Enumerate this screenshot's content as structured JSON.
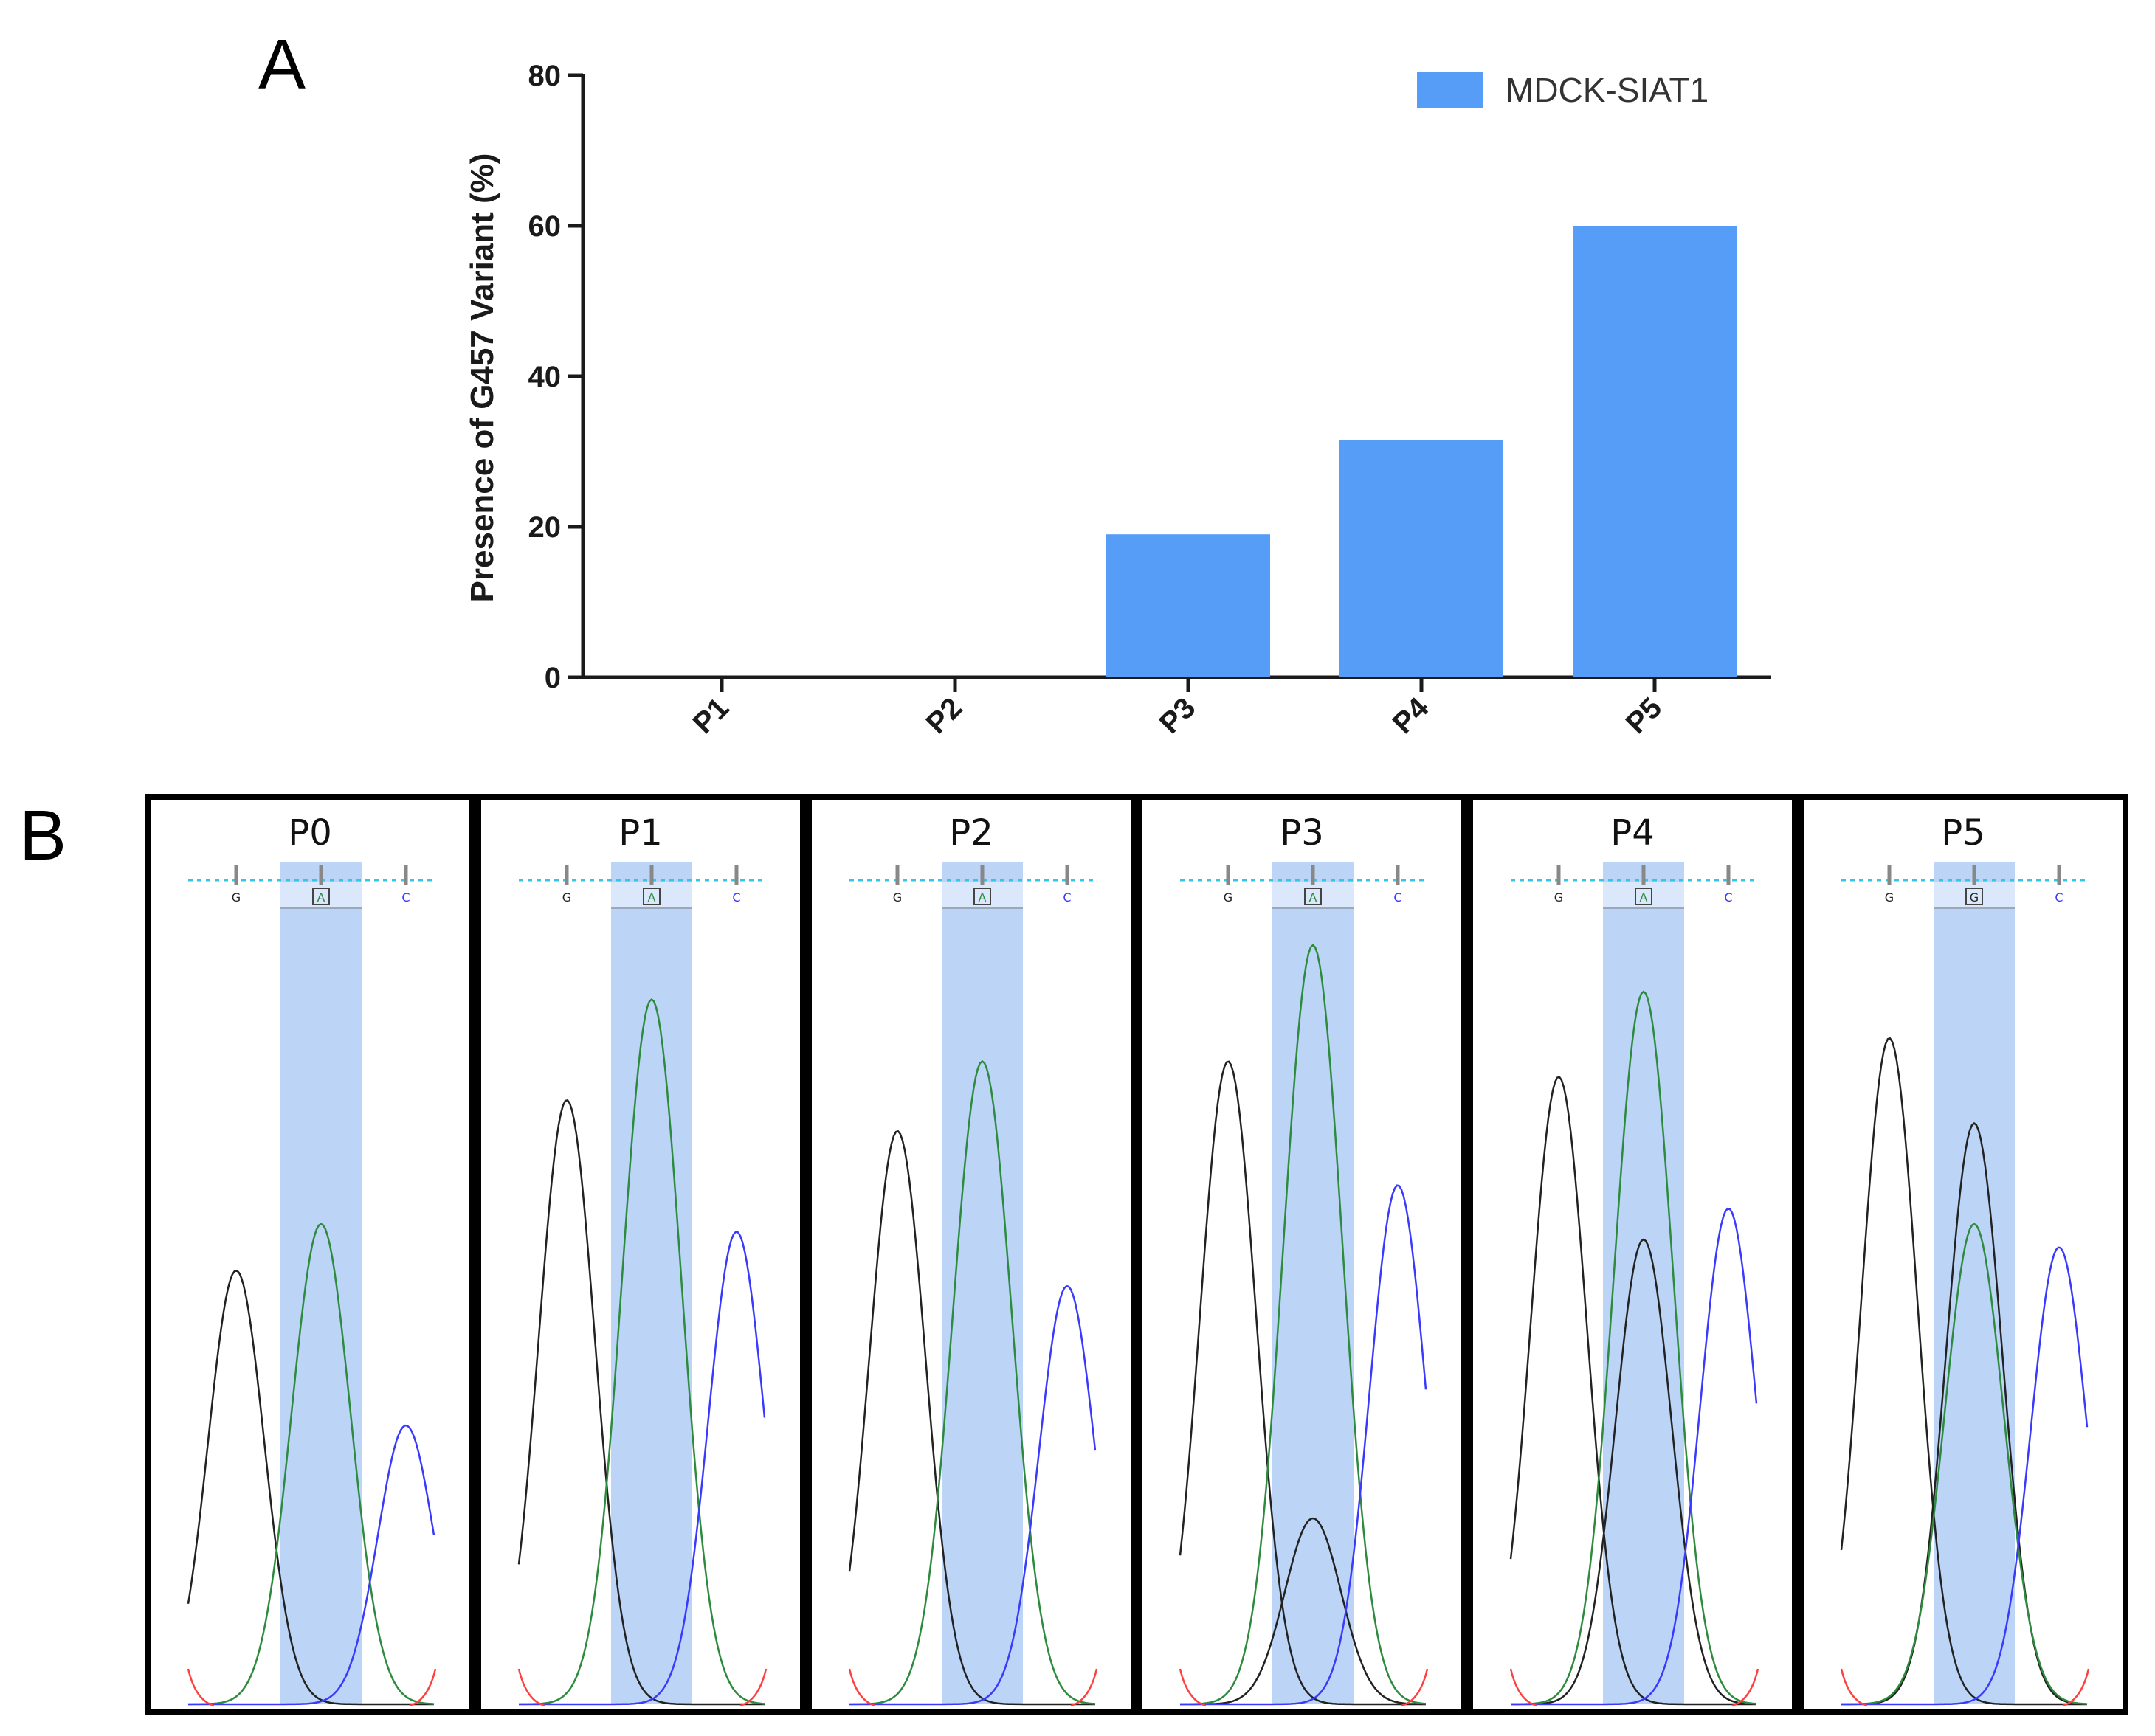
{
  "figure": {
    "label_a": "A",
    "label_b": "B"
  },
  "chart_data": [
    {
      "type": "bar",
      "title": "",
      "categories": [
        "P1",
        "P2",
        "P3",
        "P4",
        "P5"
      ],
      "series": [
        {
          "name": "MDCK-SIAT1",
          "values": [
            0,
            0,
            19,
            31.5,
            60
          ],
          "color": "#559df6"
        }
      ],
      "xlabel": "",
      "ylabel": "Presence of G457 Variant (%)",
      "ylim": [
        0,
        80
      ],
      "yticks": [
        0,
        20,
        40,
        60,
        80
      ],
      "grid": false,
      "legend": "top-right"
    },
    {
      "type": "chromatogram",
      "colors": {
        "G": "#222222",
        "A": "#2e8b3e",
        "C": "#3a3aff",
        "T": "#ff4040",
        "highlight": "#bcd5f7",
        "dotted": "#33c6e8"
      },
      "panels": [
        {
          "title": "P0",
          "bases": [
            "G",
            "A",
            "C"
          ],
          "called": "A",
          "peaks": {
            "G1": 0.56,
            "A": 0.62,
            "C": 0.36,
            "G2": 0
          }
        },
        {
          "title": "P1",
          "bases": [
            "G",
            "A",
            "C"
          ],
          "called": "A",
          "peaks": {
            "G1": 0.78,
            "A": 0.91,
            "C": 0.61,
            "G2": 0
          }
        },
        {
          "title": "P2",
          "bases": [
            "G",
            "A",
            "C"
          ],
          "called": "A",
          "peaks": {
            "G1": 0.74,
            "A": 0.83,
            "C": 0.54,
            "G2": 0
          }
        },
        {
          "title": "P3",
          "bases": [
            "G",
            "A",
            "C"
          ],
          "called": "A",
          "peaks": {
            "G1": 0.83,
            "A": 0.98,
            "C": 0.67,
            "G2": 0.24
          }
        },
        {
          "title": "P4",
          "bases": [
            "G",
            "A",
            "C"
          ],
          "called": "A",
          "peaks": {
            "G1": 0.81,
            "A": 0.92,
            "C": 0.64,
            "G2": 0.6
          }
        },
        {
          "title": "P5",
          "bases": [
            "G",
            "G",
            "C"
          ],
          "called": "G",
          "peaks": {
            "G1": 0.86,
            "A": 0.62,
            "C": 0.59,
            "G2": 0.75
          }
        }
      ]
    }
  ]
}
